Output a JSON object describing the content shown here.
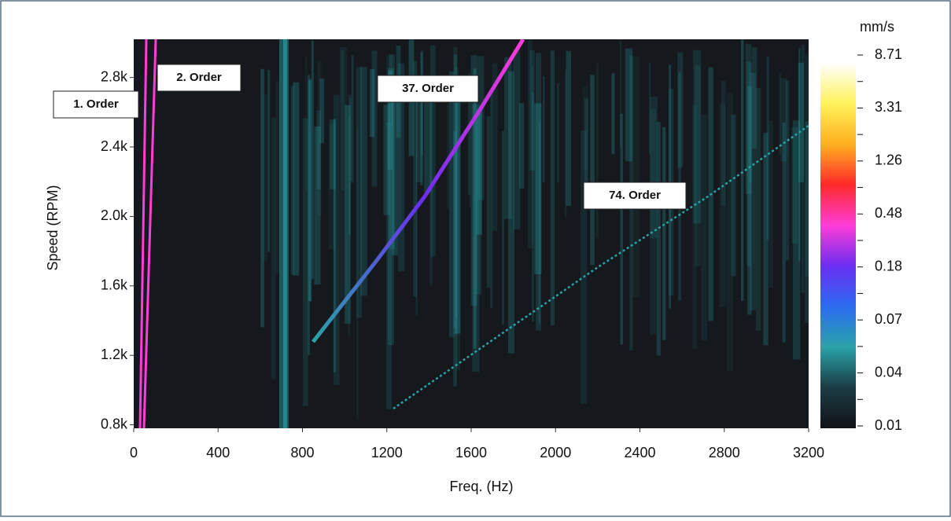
{
  "chart_data": {
    "type": "heatmap",
    "x_label": "Freq. (Hz)",
    "y_label": "Speed (RPM)",
    "xlim": [
      0,
      3200
    ],
    "xticks": [
      0,
      400,
      800,
      1200,
      1600,
      2000,
      2400,
      2800,
      3200
    ],
    "ylim": [
      780,
      3020
    ],
    "yticks": [
      {
        "value": 800,
        "label": "0.8k"
      },
      {
        "value": 1200,
        "label": "1.2k"
      },
      {
        "value": 1600,
        "label": "1.6k"
      },
      {
        "value": 2000,
        "label": "2.0k"
      },
      {
        "value": 2400,
        "label": "2.4k"
      },
      {
        "value": 2800,
        "label": "2.8k"
      }
    ],
    "colorbar": {
      "label": "mm/s",
      "ticks": [
        0.01,
        0.04,
        0.07,
        0.18,
        0.48,
        1.26,
        3.31,
        8.71
      ],
      "colors": [
        "#111317",
        "#1b3b44",
        "#2aa3a8",
        "#2b6cf0",
        "#6a2df0",
        "#ff3cd8",
        "#ff2a2a",
        "#ffb020",
        "#fff25a",
        "#ffffff"
      ]
    },
    "annotations": [
      "1. Order",
      "2. Order",
      "37. Order",
      "74. Order"
    ]
  }
}
